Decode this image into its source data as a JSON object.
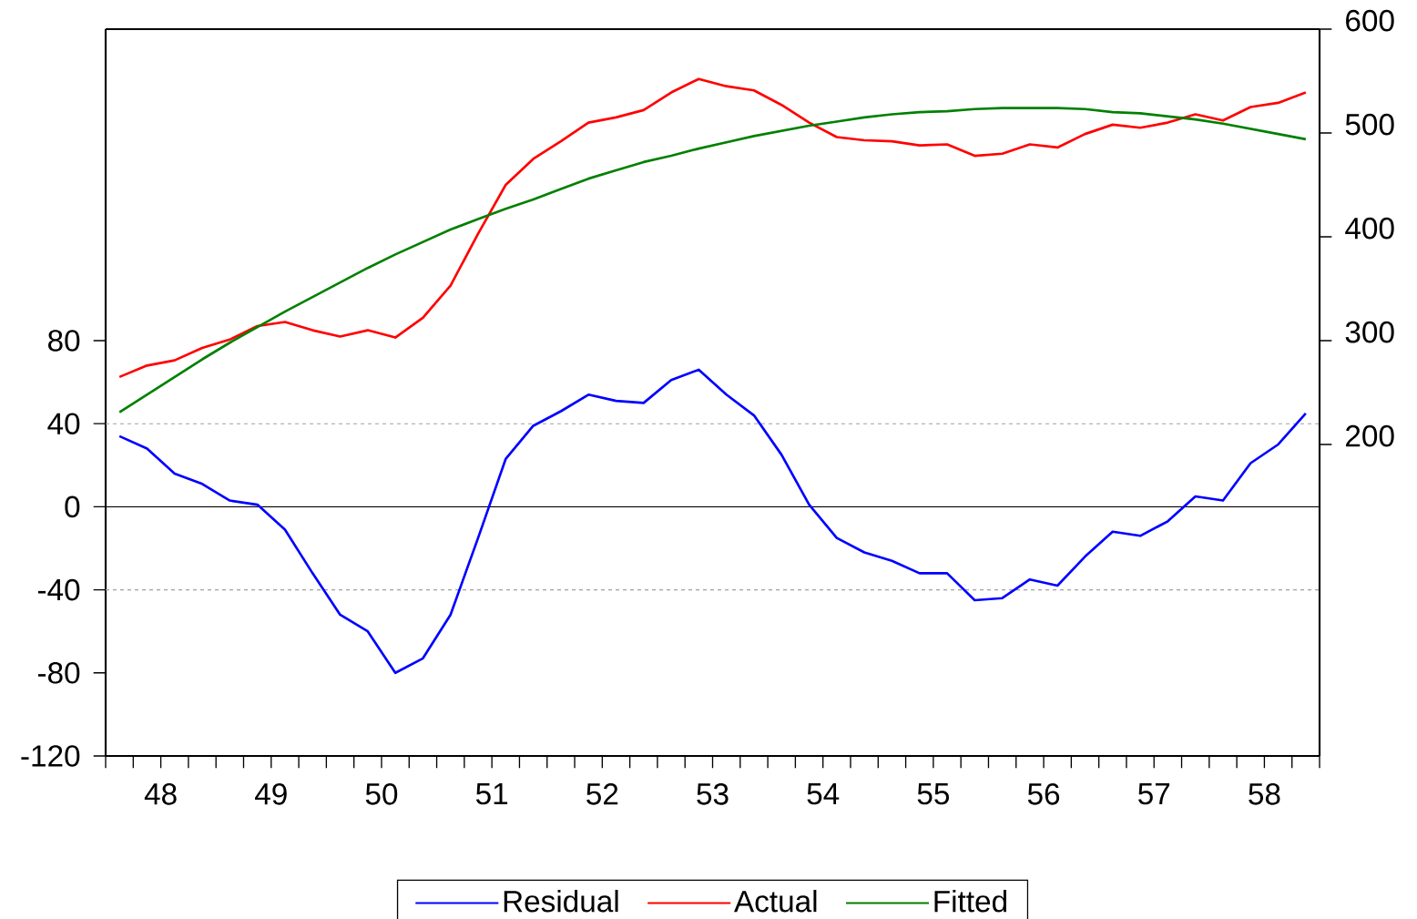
{
  "chart_data": {
    "type": "line",
    "x": [
      47.625,
      47.875,
      48.125,
      48.375,
      48.625,
      48.875,
      49.125,
      49.375,
      49.625,
      49.875,
      50.125,
      50.375,
      50.625,
      50.875,
      51.125,
      51.375,
      51.625,
      51.875,
      52.125,
      52.375,
      52.625,
      52.875,
      53.125,
      53.375,
      53.625,
      53.875,
      54.125,
      54.375,
      54.625,
      54.875,
      55.125,
      55.375,
      55.625,
      55.875,
      56.125,
      56.375,
      56.625,
      56.875,
      57.125,
      57.375,
      57.625,
      57.875,
      58.125,
      58.375
    ],
    "series": [
      {
        "name": "Residual",
        "color": "#0000ff",
        "values": [
          34,
          28,
          16,
          11,
          3,
          1,
          -11,
          -32,
          -52,
          -60,
          -80,
          -73,
          -52,
          -15,
          23,
          39,
          46,
          54,
          51,
          50,
          61,
          66,
          54,
          44,
          25,
          1,
          -15,
          -22,
          -26,
          -32,
          -32,
          -45,
          -44,
          -35,
          -38,
          -24,
          -12,
          -14,
          -7,
          5,
          3,
          21,
          30,
          45
        ]
      },
      {
        "name": "Actual",
        "color": "#ff0000",
        "axis": "y2",
        "values": [
          265,
          276,
          281,
          293,
          301,
          314,
          318,
          310,
          304,
          310,
          303,
          322,
          353,
          403,
          450,
          475,
          492,
          510,
          515,
          522,
          539,
          552,
          545,
          541,
          527,
          510,
          496,
          493,
          492,
          488,
          489,
          478,
          480,
          489,
          486,
          499,
          508,
          505,
          510,
          518,
          512,
          525,
          529,
          539
        ]
      },
      {
        "name": "Fitted",
        "color": "#008000",
        "axis": "y2",
        "values": [
          231,
          248,
          265,
          282,
          298,
          313,
          328,
          342,
          356,
          370,
          383,
          395,
          407,
          417,
          427,
          436,
          446,
          456,
          464,
          472,
          478,
          485,
          491,
          497,
          502,
          507,
          511,
          515,
          518,
          520,
          521,
          523,
          524,
          524,
          524,
          523,
          520,
          519,
          516,
          513,
          509,
          504,
          499,
          494
        ]
      }
    ],
    "xlim": [
      47.5,
      58.5
    ],
    "xticks": [
      {
        "value": 47.5,
        "label": null
      },
      {
        "value": 47.75,
        "label": null
      },
      48,
      {
        "value": 48.25,
        "label": null
      },
      {
        "value": 48.5,
        "label": null
      },
      {
        "value": 48.75,
        "label": null
      },
      49,
      {
        "value": 49.25,
        "label": null
      },
      {
        "value": 49.5,
        "label": null
      },
      {
        "value": 49.75,
        "label": null
      },
      50,
      {
        "value": 50.25,
        "label": null
      },
      {
        "value": 50.5,
        "label": null
      },
      {
        "value": 50.75,
        "label": null
      },
      51,
      {
        "value": 51.25,
        "label": null
      },
      {
        "value": 51.5,
        "label": null
      },
      {
        "value": 51.75,
        "label": null
      },
      52,
      {
        "value": 52.25,
        "label": null
      },
      {
        "value": 52.5,
        "label": null
      },
      {
        "value": 52.75,
        "label": null
      },
      53,
      {
        "value": 53.25,
        "label": null
      },
      {
        "value": 53.5,
        "label": null
      },
      {
        "value": 53.75,
        "label": null
      },
      54,
      {
        "value": 54.25,
        "label": null
      },
      {
        "value": 54.5,
        "label": null
      },
      {
        "value": 54.75,
        "label": null
      },
      55,
      {
        "value": 55.25,
        "label": null
      },
      {
        "value": 55.5,
        "label": null
      },
      {
        "value": 55.75,
        "label": null
      },
      56,
      {
        "value": 56.25,
        "label": null
      },
      {
        "value": 56.5,
        "label": null
      },
      {
        "value": 56.75,
        "label": null
      },
      57,
      {
        "value": 57.25,
        "label": null
      },
      {
        "value": 57.5,
        "label": null
      },
      {
        "value": 57.75,
        "label": null
      },
      58,
      {
        "value": 58.25,
        "label": null
      },
      {
        "value": 58.5,
        "label": null
      }
    ],
    "ylim": [
      -120,
      230
    ],
    "yticks": [
      -120,
      -80,
      -40,
      0,
      40,
      80
    ],
    "y2lim": [
      -100,
      600
    ],
    "y2ticks": [
      200,
      300,
      400,
      500,
      600
    ],
    "ref_lines": [
      {
        "axis": "y",
        "value": 40,
        "color": "#a0a0a0",
        "line_style": "dashed"
      },
      {
        "axis": "y",
        "value": -40,
        "color": "#a0a0a0",
        "line_style": "dashed"
      },
      {
        "axis": "y",
        "value": 0,
        "color": "#000000",
        "line_style": "solid"
      }
    ],
    "legend": "bottom",
    "line_style": "solid",
    "marker": "none",
    "grid": false
  }
}
